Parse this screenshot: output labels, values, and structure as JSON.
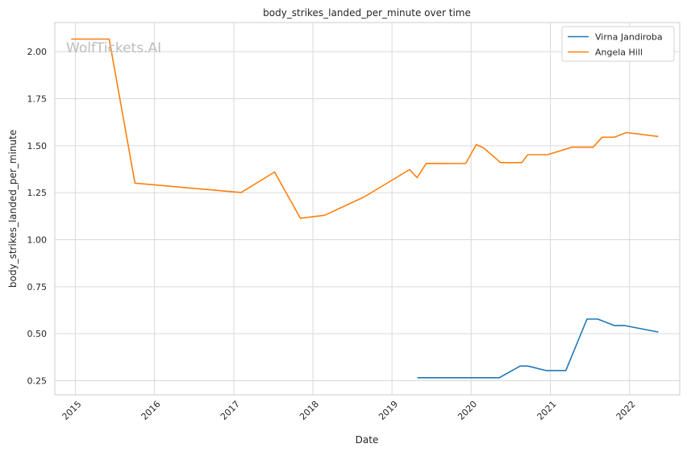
{
  "chart_data": {
    "type": "line",
    "title": "body_strikes_landed_per_minute over time",
    "xlabel": "Date",
    "ylabel": "body_strikes_landed_per_minute",
    "watermark": "WolfTickets.AI",
    "x_ticks": [
      "2015",
      "2016",
      "2017",
      "2018",
      "2019",
      "2020",
      "2021",
      "2022"
    ],
    "y_ticks": [
      "0.25",
      "0.50",
      "0.75",
      "1.00",
      "1.25",
      "1.50",
      "1.75",
      "2.00"
    ],
    "xlim": [
      "2014-09-28",
      "2022-08-21"
    ],
    "ylim": [
      0.175,
      2.155
    ],
    "grid": true,
    "legend_position": "top-right",
    "series": [
      {
        "name": "Virna Jandiroba",
        "color": "#1f77b4",
        "points": [
          [
            "2019-04-28",
            0.266
          ],
          [
            "2020-05-10",
            0.266
          ],
          [
            "2020-08-15",
            0.328
          ],
          [
            "2020-09-19",
            0.328
          ],
          [
            "2020-12-12",
            0.304
          ],
          [
            "2021-03-13",
            0.304
          ],
          [
            "2021-06-19",
            0.578
          ],
          [
            "2021-08-07",
            0.578
          ],
          [
            "2021-10-24",
            0.543
          ],
          [
            "2021-12-11",
            0.543
          ],
          [
            "2022-05-14",
            0.509
          ]
        ]
      },
      {
        "name": "Angela Hill",
        "color": "#ff7f0e",
        "points": [
          [
            "2014-12-12",
            2.067
          ],
          [
            "2015-06-06",
            2.067
          ],
          [
            "2015-10-03",
            1.301
          ],
          [
            "2017-02-04",
            1.251
          ],
          [
            "2017-07-08",
            1.36
          ],
          [
            "2017-11-04",
            1.114
          ],
          [
            "2018-02-24",
            1.13
          ],
          [
            "2018-08-25",
            1.227
          ],
          [
            "2019-03-23",
            1.373
          ],
          [
            "2019-04-27",
            1.33
          ],
          [
            "2019-06-08",
            1.406
          ],
          [
            "2019-12-07",
            1.405
          ],
          [
            "2020-01-25",
            1.506
          ],
          [
            "2020-02-29",
            1.487
          ],
          [
            "2020-05-16",
            1.41
          ],
          [
            "2020-08-22",
            1.41
          ],
          [
            "2020-09-19",
            1.452
          ],
          [
            "2020-12-19",
            1.452
          ],
          [
            "2021-04-10",
            1.492
          ],
          [
            "2021-07-17",
            1.492
          ],
          [
            "2021-08-28",
            1.545
          ],
          [
            "2021-10-23",
            1.545
          ],
          [
            "2021-12-18",
            1.57
          ],
          [
            "2022-05-14",
            1.549
          ]
        ]
      }
    ]
  }
}
